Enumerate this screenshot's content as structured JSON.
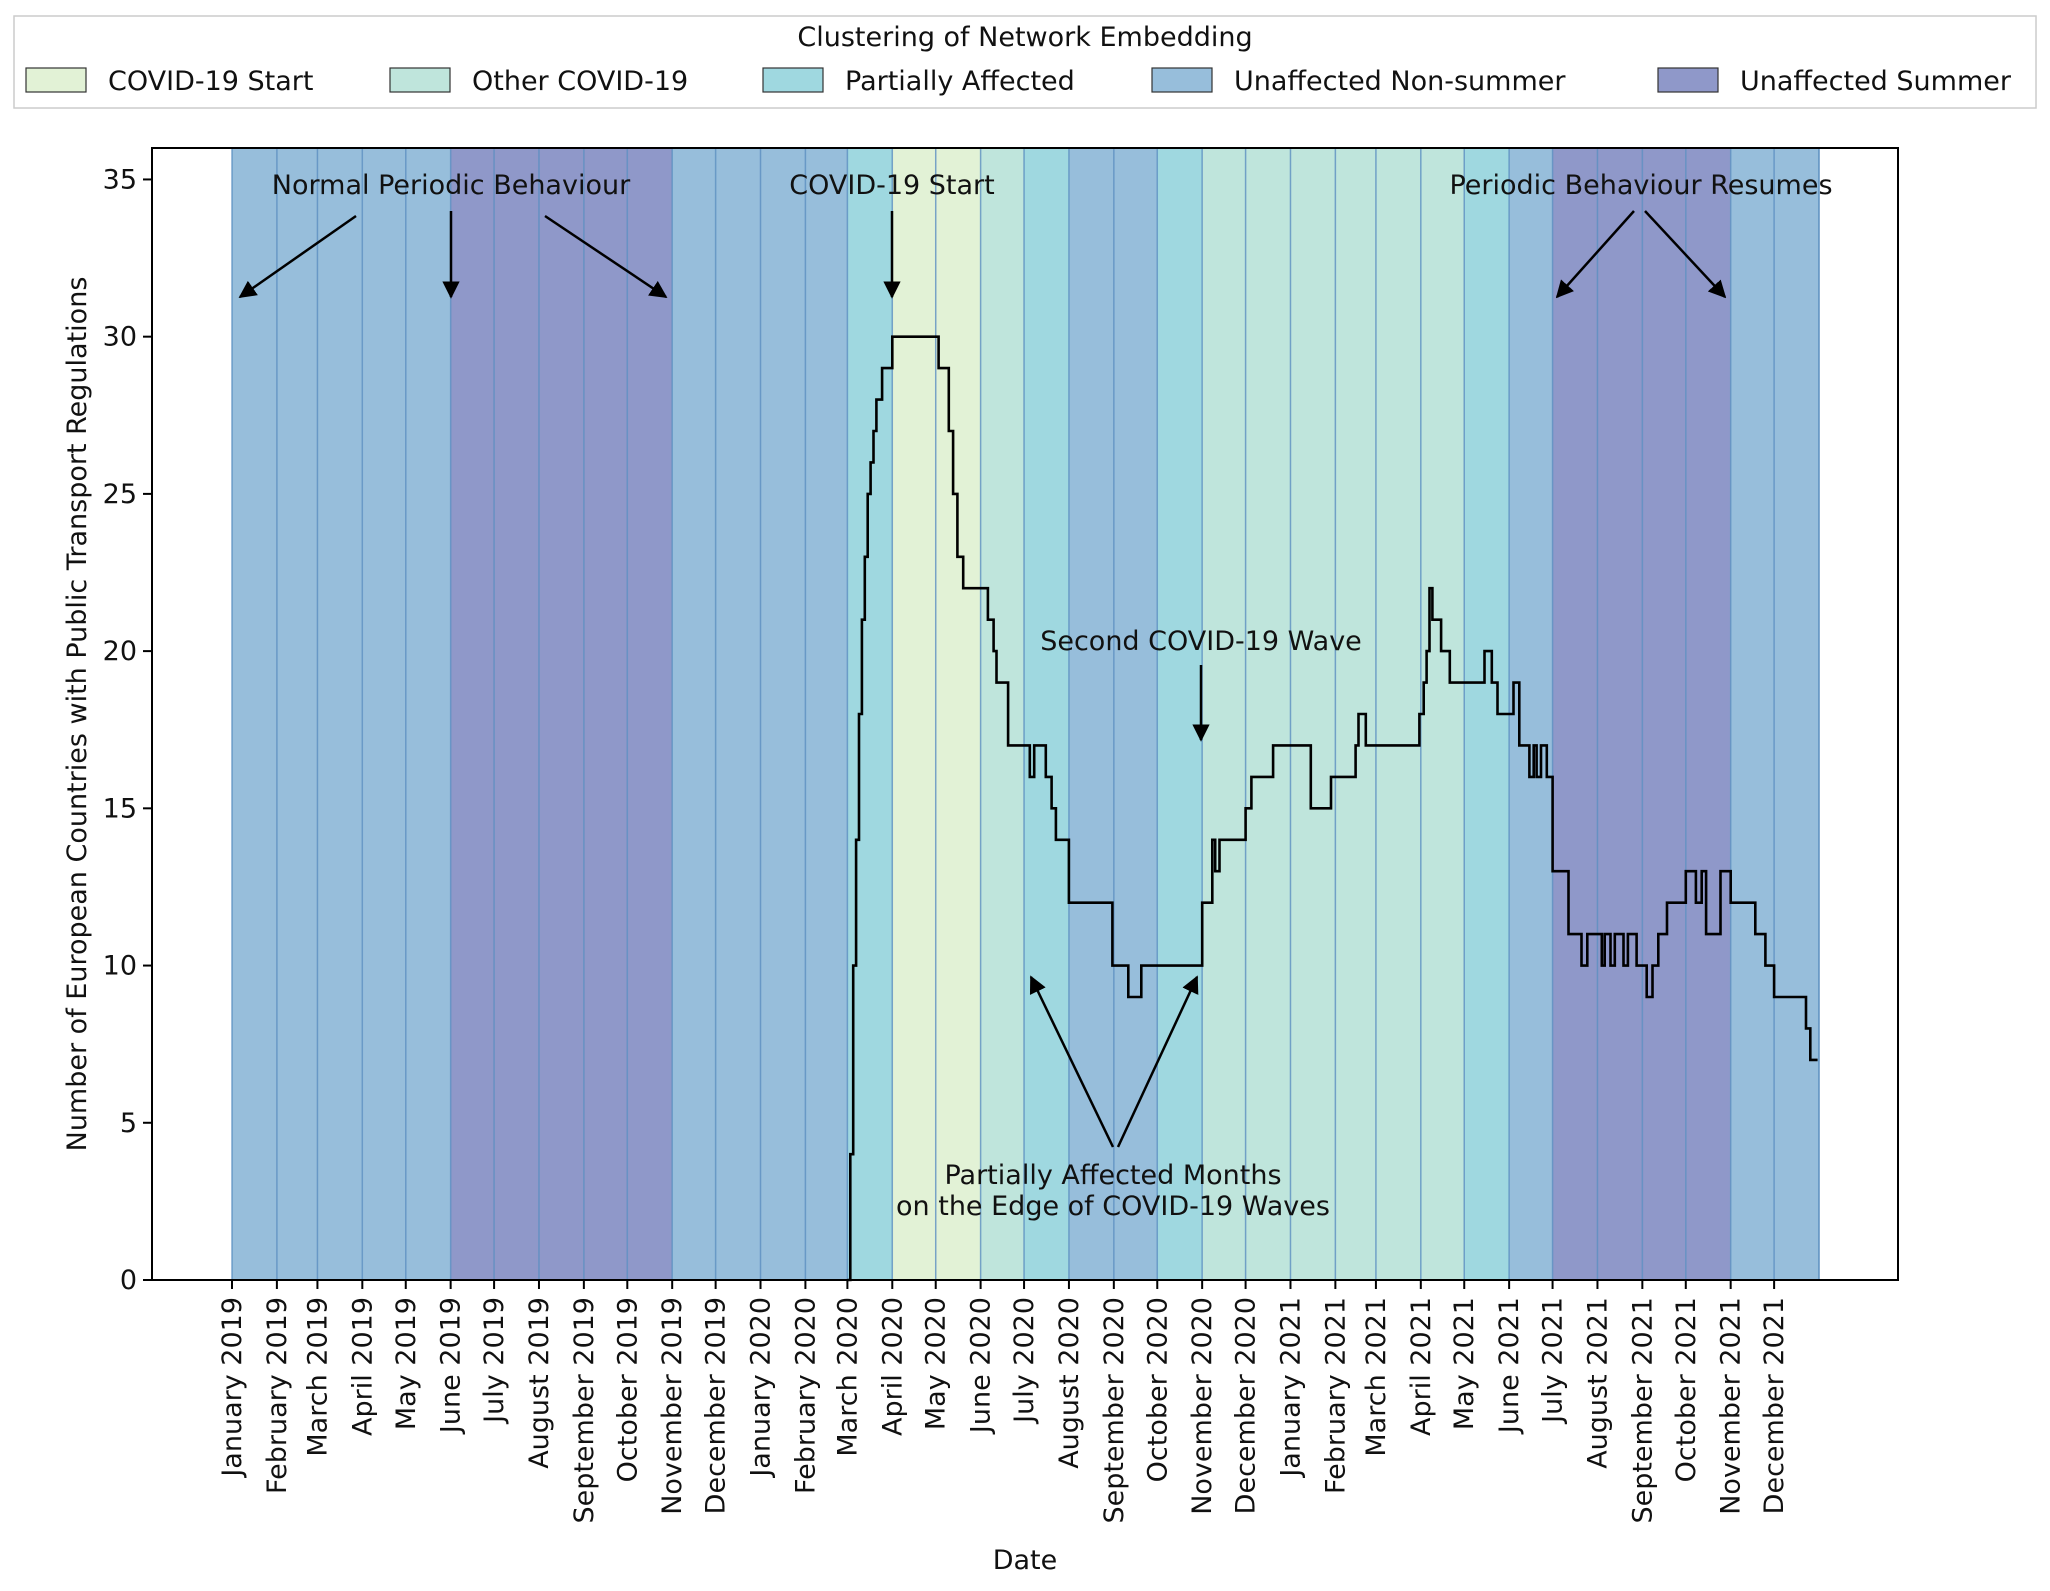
{
  "chart_data": {
    "type": "line",
    "xlabel": "Date",
    "ylabel": "Number of European Countries with Public Transport Regulations",
    "ylim": [
      0,
      36
    ],
    "yticks": [
      0,
      5,
      10,
      15,
      20,
      25,
      30,
      35
    ],
    "grid": false,
    "legend": {
      "title": "Clustering of Network Embedding",
      "placement": "top, above plot",
      "entries": [
        {
          "label": "COVID-19 Start",
          "color": "#e2f2d6"
        },
        {
          "label": "Other COVID-19",
          "color": "#bfe5dc"
        },
        {
          "label": "Partially Affected",
          "color": "#9fd8e0"
        },
        {
          "label": "Unaffected Non-summer",
          "color": "#97bedb"
        },
        {
          "label": "Unaffected Summer",
          "color": "#8f98c9"
        }
      ]
    },
    "months": [
      {
        "label": "January 2019",
        "start": "2019-01-01",
        "cluster": "Unaffected Non-summer"
      },
      {
        "label": "February 2019",
        "start": "2019-02-01",
        "cluster": "Unaffected Non-summer"
      },
      {
        "label": "March 2019",
        "start": "2019-03-01",
        "cluster": "Unaffected Non-summer"
      },
      {
        "label": "April 2019",
        "start": "2019-04-01",
        "cluster": "Unaffected Non-summer"
      },
      {
        "label": "May 2019",
        "start": "2019-05-01",
        "cluster": "Unaffected Non-summer"
      },
      {
        "label": "June 2019",
        "start": "2019-06-01",
        "cluster": "Unaffected Summer"
      },
      {
        "label": "July 2019",
        "start": "2019-07-01",
        "cluster": "Unaffected Summer"
      },
      {
        "label": "August 2019",
        "start": "2019-08-01",
        "cluster": "Unaffected Summer"
      },
      {
        "label": "September 2019",
        "start": "2019-09-01",
        "cluster": "Unaffected Summer"
      },
      {
        "label": "October 2019",
        "start": "2019-10-01",
        "cluster": "Unaffected Summer"
      },
      {
        "label": "November 2019",
        "start": "2019-11-01",
        "cluster": "Unaffected Non-summer"
      },
      {
        "label": "December 2019",
        "start": "2019-12-01",
        "cluster": "Unaffected Non-summer"
      },
      {
        "label": "January 2020",
        "start": "2020-01-01",
        "cluster": "Unaffected Non-summer"
      },
      {
        "label": "February 2020",
        "start": "2020-02-01",
        "cluster": "Unaffected Non-summer"
      },
      {
        "label": "March 2020",
        "start": "2020-03-01",
        "cluster": "Partially Affected"
      },
      {
        "label": "April 2020",
        "start": "2020-04-01",
        "cluster": "COVID-19 Start"
      },
      {
        "label": "May 2020",
        "start": "2020-05-01",
        "cluster": "COVID-19 Start"
      },
      {
        "label": "June 2020",
        "start": "2020-06-01",
        "cluster": "Other COVID-19"
      },
      {
        "label": "July 2020",
        "start": "2020-07-01",
        "cluster": "Partially Affected"
      },
      {
        "label": "August 2020",
        "start": "2020-08-01",
        "cluster": "Unaffected Non-summer"
      },
      {
        "label": "September 2020",
        "start": "2020-09-01",
        "cluster": "Unaffected Non-summer"
      },
      {
        "label": "October 2020",
        "start": "2020-10-01",
        "cluster": "Partially Affected"
      },
      {
        "label": "November 2020",
        "start": "2020-11-01",
        "cluster": "Other COVID-19"
      },
      {
        "label": "December 2020",
        "start": "2020-12-01",
        "cluster": "Other COVID-19"
      },
      {
        "label": "January 2021",
        "start": "2021-01-01",
        "cluster": "Other COVID-19"
      },
      {
        "label": "February 2021",
        "start": "2021-02-01",
        "cluster": "Other COVID-19"
      },
      {
        "label": "March 2021",
        "start": "2021-03-01",
        "cluster": "Other COVID-19"
      },
      {
        "label": "April 2021",
        "start": "2021-04-01",
        "cluster": "Other COVID-19"
      },
      {
        "label": "May 2021",
        "start": "2021-05-01",
        "cluster": "Partially Affected"
      },
      {
        "label": "June 2021",
        "start": "2021-06-01",
        "cluster": "Unaffected Non-summer"
      },
      {
        "label": "July 2021",
        "start": "2021-07-01",
        "cluster": "Unaffected Summer"
      },
      {
        "label": "August 2021",
        "start": "2021-08-01",
        "cluster": "Unaffected Summer"
      },
      {
        "label": "September 2021",
        "start": "2021-09-01",
        "cluster": "Unaffected Summer"
      },
      {
        "label": "October 2021",
        "start": "2021-10-01",
        "cluster": "Unaffected Summer"
      },
      {
        "label": "November 2021",
        "start": "2021-11-01",
        "cluster": "Unaffected Non-summer"
      },
      {
        "label": "December 2021",
        "start": "2021-12-01",
        "cluster": "Unaffected Non-summer"
      }
    ],
    "series": [
      {
        "x": [
          "2020-03-01",
          "2020-03-03",
          "2020-03-05",
          "2020-03-07",
          "2020-03-09",
          "2020-03-11",
          "2020-03-13",
          "2020-03-15",
          "2020-03-17",
          "2020-03-19",
          "2020-03-21",
          "2020-03-23",
          "2020-03-25",
          "2020-03-27",
          "2020-03-29",
          "2020-04-01",
          "2020-04-05",
          "2020-04-10",
          "2020-04-20",
          "2020-04-28",
          "2020-05-03",
          "2020-05-05",
          "2020-05-10",
          "2020-05-13",
          "2020-05-16",
          "2020-05-20",
          "2020-05-25",
          "2020-06-01",
          "2020-06-03",
          "2020-06-06",
          "2020-06-10",
          "2020-06-12",
          "2020-06-20",
          "2020-06-24",
          "2020-06-28",
          "2020-07-05",
          "2020-07-08",
          "2020-07-12",
          "2020-07-16",
          "2020-07-20",
          "2020-07-23",
          "2020-08-01",
          "2020-08-07",
          "2020-08-17",
          "2020-08-31",
          "2020-09-01",
          "2020-09-08",
          "2020-09-11",
          "2020-09-20",
          "2020-10-01",
          "2020-10-08",
          "2020-10-10",
          "2020-10-12",
          "2020-10-20",
          "2020-10-25",
          "2020-11-01",
          "2020-11-05",
          "2020-11-08",
          "2020-11-10",
          "2020-11-13",
          "2020-11-20",
          "2020-12-01",
          "2020-12-05",
          "2020-12-10",
          "2020-12-20",
          "2021-01-01",
          "2021-01-08",
          "2021-01-15",
          "2021-01-22",
          "2021-01-29",
          "2021-02-05",
          "2021-02-15",
          "2021-02-17",
          "2021-02-22",
          "2021-02-26",
          "2021-03-01",
          "2021-03-07",
          "2021-03-20",
          "2021-03-31",
          "2021-04-03",
          "2021-04-05",
          "2021-04-07",
          "2021-04-09",
          "2021-04-12",
          "2021-04-15",
          "2021-04-18",
          "2021-04-21",
          "2021-04-26",
          "2021-05-01",
          "2021-05-05",
          "2021-05-08",
          "2021-05-15",
          "2021-05-20",
          "2021-05-24",
          "2021-05-26",
          "2021-06-01",
          "2021-06-04",
          "2021-06-08",
          "2021-06-15",
          "2021-06-18",
          "2021-06-20",
          "2021-06-23",
          "2021-06-27",
          "2021-07-01",
          "2021-07-03",
          "2021-07-08",
          "2021-07-12",
          "2021-07-15",
          "2021-07-18",
          "2021-07-21",
          "2021-07-25",
          "2021-07-28",
          "2021-08-01",
          "2021-08-04",
          "2021-08-06",
          "2021-08-10",
          "2021-08-13",
          "2021-08-16",
          "2021-08-19",
          "2021-08-22",
          "2021-08-25",
          "2021-08-28",
          "2021-09-01",
          "2021-09-04",
          "2021-09-08",
          "2021-09-12",
          "2021-09-18",
          "2021-09-25",
          "2021-09-28",
          "2021-10-01",
          "2021-10-05",
          "2021-10-08",
          "2021-10-10",
          "2021-10-12",
          "2021-10-15",
          "2021-10-25",
          "2021-11-01",
          "2021-11-07",
          "2021-11-12",
          "2021-11-18",
          "2021-11-25",
          "2021-12-01",
          "2021-12-10",
          "2021-12-18",
          "2021-12-23",
          "2021-12-26",
          "2021-12-31"
        ],
        "y": [
          0,
          4,
          10,
          14,
          18,
          21,
          23,
          25,
          26,
          27,
          28,
          28,
          29,
          29,
          29,
          30,
          30,
          30,
          30,
          30,
          29,
          29,
          27,
          25,
          23,
          22,
          22,
          22,
          22,
          21,
          20,
          19,
          17,
          17,
          17,
          16,
          17,
          17,
          16,
          15,
          14,
          12,
          12,
          12,
          10,
          10,
          10,
          9,
          10,
          10,
          10,
          10,
          10,
          10,
          10,
          12,
          12,
          14,
          13,
          14,
          14,
          15,
          16,
          16,
          17,
          17,
          17,
          15,
          15,
          16,
          16,
          17,
          18,
          17,
          17,
          17,
          17,
          17,
          18,
          19,
          20,
          22,
          21,
          21,
          20,
          20,
          19,
          19,
          19,
          19,
          19,
          20,
          19,
          18,
          18,
          18,
          19,
          17,
          16,
          17,
          16,
          17,
          16,
          13,
          13,
          13,
          11,
          11,
          11,
          10,
          11,
          11,
          11,
          10,
          11,
          10,
          11,
          11,
          10,
          11,
          11,
          10,
          10,
          9,
          10,
          11,
          12,
          12,
          12,
          13,
          13,
          12,
          12,
          13,
          11,
          13,
          12,
          12,
          12,
          11,
          10,
          9,
          9,
          9,
          8,
          7,
          7
        ]
      }
    ],
    "annotations": [
      {
        "text": "Normal Periodic Behaviour"
      },
      {
        "text": "COVID-19 Start"
      },
      {
        "text": "Second COVID-19 Wave"
      },
      {
        "text": "Periodic Behaviour Resumes"
      },
      {
        "text": "Partially Affected Months"
      },
      {
        "text": "on the Edge of COVID-19 Waves"
      }
    ]
  }
}
